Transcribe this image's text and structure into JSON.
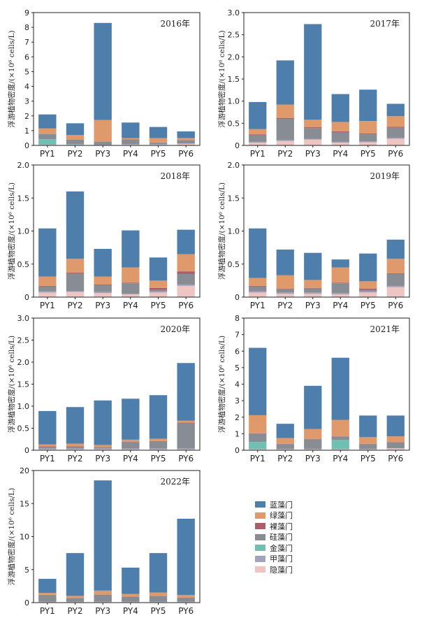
{
  "figure": {
    "ylabel": "浮游植物密度/(×10⁶ cells/L)",
    "series_names": [
      "蓝藻门",
      "绿藻门",
      "裸藻门",
      "硅藻门",
      "金藻门",
      "甲藻门",
      "隐藻门"
    ],
    "series_colors": [
      "#4e7fac",
      "#e0996a",
      "#a85f69",
      "#888c93",
      "#6fc0b3",
      "#a4a3bd",
      "#efc5c2"
    ]
  },
  "chart_data": [
    {
      "type": "bar",
      "stacked": true,
      "title": "2016年",
      "categories": [
        "PY1",
        "PY2",
        "PY3",
        "PY4",
        "PY5",
        "PY6"
      ],
      "ylabel": "浮游植物密度/(×10⁶ cells/L)",
      "ylim": [
        0,
        9
      ],
      "yticks": [
        "0",
        "1",
        "2",
        "3",
        "4",
        "5",
        "6",
        "7",
        "8",
        "9"
      ],
      "series": [
        {
          "name": "隐藻门",
          "values": [
            0.05,
            0.05,
            0.02,
            0.05,
            0.05,
            0.1
          ]
        },
        {
          "name": "甲藻门",
          "values": [
            0.02,
            0.02,
            0.02,
            0.02,
            0.02,
            0.02
          ]
        },
        {
          "name": "金藻门",
          "values": [
            0.35,
            0.02,
            0.01,
            0.01,
            0.01,
            0.01
          ]
        },
        {
          "name": "硅藻门",
          "values": [
            0.35,
            0.3,
            0.2,
            0.3,
            0.1,
            0.22
          ]
        },
        {
          "name": "裸藻门",
          "values": [
            0.02,
            0.02,
            0.02,
            0.02,
            0.02,
            0.02
          ]
        },
        {
          "name": "绿藻门",
          "values": [
            0.36,
            0.3,
            1.45,
            0.1,
            0.3,
            0.13
          ]
        },
        {
          "name": "蓝藻门",
          "values": [
            0.95,
            0.79,
            6.58,
            1.05,
            0.75,
            0.45
          ]
        }
      ]
    },
    {
      "type": "bar",
      "stacked": true,
      "title": "2017年",
      "categories": [
        "PY1",
        "PY2",
        "PY3",
        "PY4",
        "PY5",
        "PY6"
      ],
      "ylabel": "浮游植物密度/(×10⁶ cells/L)",
      "ylim": [
        0,
        3.0
      ],
      "yticks": [
        "0",
        "0.5",
        "1.0",
        "1.5",
        "2.0",
        "2.5",
        "3.0"
      ],
      "series": [
        {
          "name": "隐藻门",
          "values": [
            0.06,
            0.1,
            0.13,
            0.06,
            0.07,
            0.15
          ]
        },
        {
          "name": "甲藻门",
          "values": [
            0.02,
            0.02,
            0.02,
            0.02,
            0.02,
            0.02
          ]
        },
        {
          "name": "金藻门",
          "values": [
            0.0,
            0.0,
            0.0,
            0.0,
            0.0,
            0.0
          ]
        },
        {
          "name": "硅藻门",
          "values": [
            0.15,
            0.48,
            0.24,
            0.22,
            0.16,
            0.23
          ]
        },
        {
          "name": "裸藻门",
          "values": [
            0.02,
            0.02,
            0.02,
            0.02,
            0.02,
            0.02
          ]
        },
        {
          "name": "绿藻门",
          "values": [
            0.12,
            0.3,
            0.17,
            0.21,
            0.28,
            0.24
          ]
        },
        {
          "name": "蓝藻门",
          "values": [
            0.61,
            1.0,
            2.16,
            0.63,
            0.71,
            0.28
          ]
        }
      ]
    },
    {
      "type": "bar",
      "stacked": true,
      "title": "2018年",
      "categories": [
        "PY1",
        "PY2",
        "PY3",
        "PY4",
        "PY5",
        "PY6"
      ],
      "ylabel": "浮游植物密度/(×10⁶ cells/L)",
      "ylim": [
        0,
        2.0
      ],
      "yticks": [
        "0",
        "0.5",
        "1.0",
        "1.5",
        "2.0"
      ],
      "series": [
        {
          "name": "隐藻门",
          "values": [
            0.07,
            0.08,
            0.06,
            0.04,
            0.07,
            0.17
          ]
        },
        {
          "name": "甲藻门",
          "values": [
            0.02,
            0.01,
            0.02,
            0.01,
            0.02,
            0.02
          ]
        },
        {
          "name": "金藻门",
          "values": [
            0.0,
            0.0,
            0.0,
            0.0,
            0.0,
            0.0
          ]
        },
        {
          "name": "硅藻门",
          "values": [
            0.07,
            0.27,
            0.1,
            0.16,
            0.02,
            0.16
          ]
        },
        {
          "name": "裸藻门",
          "values": [
            0.01,
            0.01,
            0.01,
            0.01,
            0.03,
            0.04
          ]
        },
        {
          "name": "绿藻门",
          "values": [
            0.14,
            0.21,
            0.12,
            0.23,
            0.11,
            0.26
          ]
        },
        {
          "name": "蓝藻门",
          "values": [
            0.73,
            1.02,
            0.42,
            0.56,
            0.35,
            0.37
          ]
        }
      ]
    },
    {
      "type": "bar",
      "stacked": true,
      "title": "2019年",
      "categories": [
        "PY1",
        "PY2",
        "PY3",
        "PY4",
        "PY5",
        "PY6"
      ],
      "ylabel": "浮游植物密度/(×10⁶ cells/L)",
      "ylim": [
        0,
        2.0
      ],
      "yticks": [
        "0",
        "0.5",
        "1.0",
        "1.5",
        "2.0"
      ],
      "series": [
        {
          "name": "隐藻门",
          "values": [
            0.07,
            0.05,
            0.05,
            0.04,
            0.07,
            0.15
          ]
        },
        {
          "name": "甲藻门",
          "values": [
            0.02,
            0.02,
            0.02,
            0.02,
            0.02,
            0.02
          ]
        },
        {
          "name": "金藻门",
          "values": [
            0.0,
            0.0,
            0.0,
            0.0,
            0.0,
            0.0
          ]
        },
        {
          "name": "硅藻门",
          "values": [
            0.07,
            0.05,
            0.06,
            0.15,
            0.02,
            0.18
          ]
        },
        {
          "name": "裸藻门",
          "values": [
            0.01,
            0.01,
            0.01,
            0.01,
            0.02,
            0.01
          ]
        },
        {
          "name": "绿藻门",
          "values": [
            0.12,
            0.2,
            0.12,
            0.23,
            0.11,
            0.22
          ]
        },
        {
          "name": "蓝藻门",
          "values": [
            0.75,
            0.39,
            0.41,
            0.12,
            0.42,
            0.29
          ]
        }
      ]
    },
    {
      "type": "bar",
      "stacked": true,
      "title": "2020年",
      "categories": [
        "PY1",
        "PY2",
        "PY3",
        "PY4",
        "PY5",
        "PY6"
      ],
      "ylabel": "浮游植物密度/(×10⁶ cells/L)",
      "ylim": [
        0,
        3.0
      ],
      "yticks": [
        "0",
        "0.5",
        "1.0",
        "1.5",
        "2.0",
        "2.5",
        "3.0"
      ],
      "series": [
        {
          "name": "隐藻门",
          "values": [
            0.02,
            0.02,
            0.02,
            0.02,
            0.02,
            0.02
          ]
        },
        {
          "name": "甲藻门",
          "values": [
            0.02,
            0.02,
            0.02,
            0.02,
            0.02,
            0.02
          ]
        },
        {
          "name": "金藻门",
          "values": [
            0.0,
            0.0,
            0.0,
            0.0,
            0.0,
            0.0
          ]
        },
        {
          "name": "硅藻门",
          "values": [
            0.04,
            0.04,
            0.02,
            0.14,
            0.16,
            0.58
          ]
        },
        {
          "name": "裸藻门",
          "values": [
            0.01,
            0.01,
            0.01,
            0.01,
            0.01,
            0.01
          ]
        },
        {
          "name": "绿藻门",
          "values": [
            0.04,
            0.06,
            0.05,
            0.05,
            0.05,
            0.04
          ]
        },
        {
          "name": "蓝藻门",
          "values": [
            0.76,
            0.83,
            1.01,
            0.93,
            0.99,
            1.31
          ]
        }
      ]
    },
    {
      "type": "bar",
      "stacked": true,
      "title": "2021年",
      "categories": [
        "PY1",
        "PY2",
        "PY3",
        "PY4",
        "PY5",
        "PY6"
      ],
      "ylabel": "浮游植物密度/(×10⁶ cells/L)",
      "ylim": [
        0,
        8
      ],
      "yticks": [
        "0",
        "1",
        "2",
        "3",
        "4",
        "5",
        "6",
        "7",
        "8"
      ],
      "series": [
        {
          "name": "隐藻门",
          "values": [
            0.05,
            0.05,
            0.05,
            0.05,
            0.05,
            0.1
          ]
        },
        {
          "name": "甲藻门",
          "values": [
            0.02,
            0.02,
            0.02,
            0.02,
            0.02,
            0.02
          ]
        },
        {
          "name": "金藻门",
          "values": [
            0.43,
            0.0,
            0.0,
            0.55,
            0.0,
            0.0
          ]
        },
        {
          "name": "硅藻门",
          "values": [
            0.5,
            0.3,
            0.6,
            0.2,
            0.3,
            0.35
          ]
        },
        {
          "name": "裸藻门",
          "values": [
            0.02,
            0.02,
            0.02,
            0.02,
            0.02,
            0.02
          ]
        },
        {
          "name": "绿藻门",
          "values": [
            1.1,
            0.35,
            0.6,
            1.0,
            0.4,
            0.35
          ]
        },
        {
          "name": "蓝藻门",
          "values": [
            4.08,
            0.86,
            2.61,
            3.76,
            1.31,
            1.26
          ]
        }
      ]
    },
    {
      "type": "bar",
      "stacked": true,
      "title": "2022年",
      "categories": [
        "PY1",
        "PY2",
        "PY3",
        "PY4",
        "PY5",
        "PY6"
      ],
      "ylabel": "浮游植物密度/(×10⁶ cells/L)",
      "ylim": [
        0,
        20
      ],
      "yticks": [
        "0",
        "5",
        "10",
        "15",
        "20"
      ],
      "series": [
        {
          "name": "隐藻门",
          "values": [
            0.1,
            0.1,
            0.1,
            0.1,
            0.1,
            0.1
          ]
        },
        {
          "name": "甲藻门",
          "values": [
            0.05,
            0.05,
            0.05,
            0.05,
            0.05,
            0.05
          ]
        },
        {
          "name": "金藻门",
          "values": [
            0.0,
            0.0,
            0.0,
            0.0,
            0.0,
            0.0
          ]
        },
        {
          "name": "硅藻门",
          "values": [
            1.0,
            0.55,
            1.05,
            0.75,
            0.85,
            0.6
          ]
        },
        {
          "name": "裸藻门",
          "values": [
            0.02,
            0.02,
            0.02,
            0.02,
            0.02,
            0.02
          ]
        },
        {
          "name": "绿藻门",
          "values": [
            0.3,
            0.3,
            0.6,
            0.4,
            0.5,
            0.4
          ]
        },
        {
          "name": "蓝藻门",
          "values": [
            2.13,
            6.48,
            16.68,
            3.98,
            5.98,
            11.53
          ]
        }
      ]
    }
  ]
}
